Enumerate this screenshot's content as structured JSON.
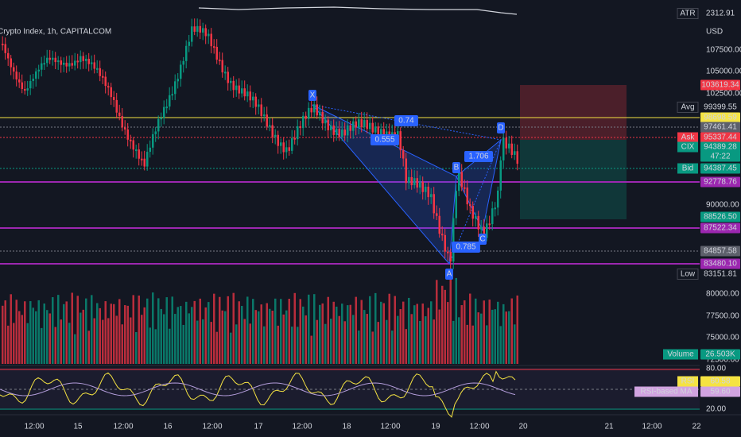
{
  "header": {
    "title": "Crypto Index, 1h, CAPITALCOM",
    "currency": "USD"
  },
  "atr": {
    "label": "ATR",
    "value": "2312.91"
  },
  "price_axis": [
    "107500.00",
    "105000.00",
    "102500.00",
    "90000.00"
  ],
  "price_tags": [
    {
      "value": "103619.34",
      "color": "#f23645"
    },
    {
      "label": "Avg",
      "value": "99399.55",
      "color": "#131722"
    },
    {
      "value": "98698.59",
      "color": "#f5e342"
    },
    {
      "value": "97461.41",
      "color": "#5d606b"
    },
    {
      "label": "Ask",
      "value": "95337.44",
      "color": "#f23645"
    },
    {
      "label": "CIX",
      "value": "94389.28",
      "color": "#089981"
    },
    {
      "value": "47:22",
      "color": "#089981"
    },
    {
      "label": "Bid",
      "value": "94387.45",
      "color": "#089981"
    },
    {
      "value": "92778.76",
      "color": "#9c27b0"
    },
    {
      "value": "88526.50",
      "color": "#089981"
    },
    {
      "value": "87522.34",
      "color": "#9c27b0"
    },
    {
      "value": "84857.58",
      "color": "#5d606b"
    },
    {
      "value": "83480.10",
      "color": "#9c27b0"
    },
    {
      "label": "Low",
      "value": "83151.81",
      "color": "#131722"
    }
  ],
  "volume_axis": [
    "80000.00",
    "77500.00",
    "75000.00",
    "72500.00"
  ],
  "volume_tag": {
    "label": "Volume",
    "value": "26.503K"
  },
  "rsi_axis": [
    "80.00",
    "20.00"
  ],
  "rsi_tags": [
    {
      "label": "RSI",
      "value": "60.58",
      "color": "#f5e342"
    },
    {
      "label": "RSI-based MA",
      "value": "59.60",
      "color": "#d1a3e0"
    }
  ],
  "time_axis": [
    "12:00",
    "15",
    "12:00",
    "16",
    "12:00",
    "17",
    "12:00",
    "18",
    "12:00",
    "19",
    "12:00",
    "20",
    "21",
    "12:00",
    "22"
  ],
  "pattern": {
    "points": [
      "X",
      "A",
      "B",
      "C",
      "D"
    ],
    "ratios": [
      "0.74",
      "0.555",
      "1.706",
      "0.785"
    ]
  }
}
